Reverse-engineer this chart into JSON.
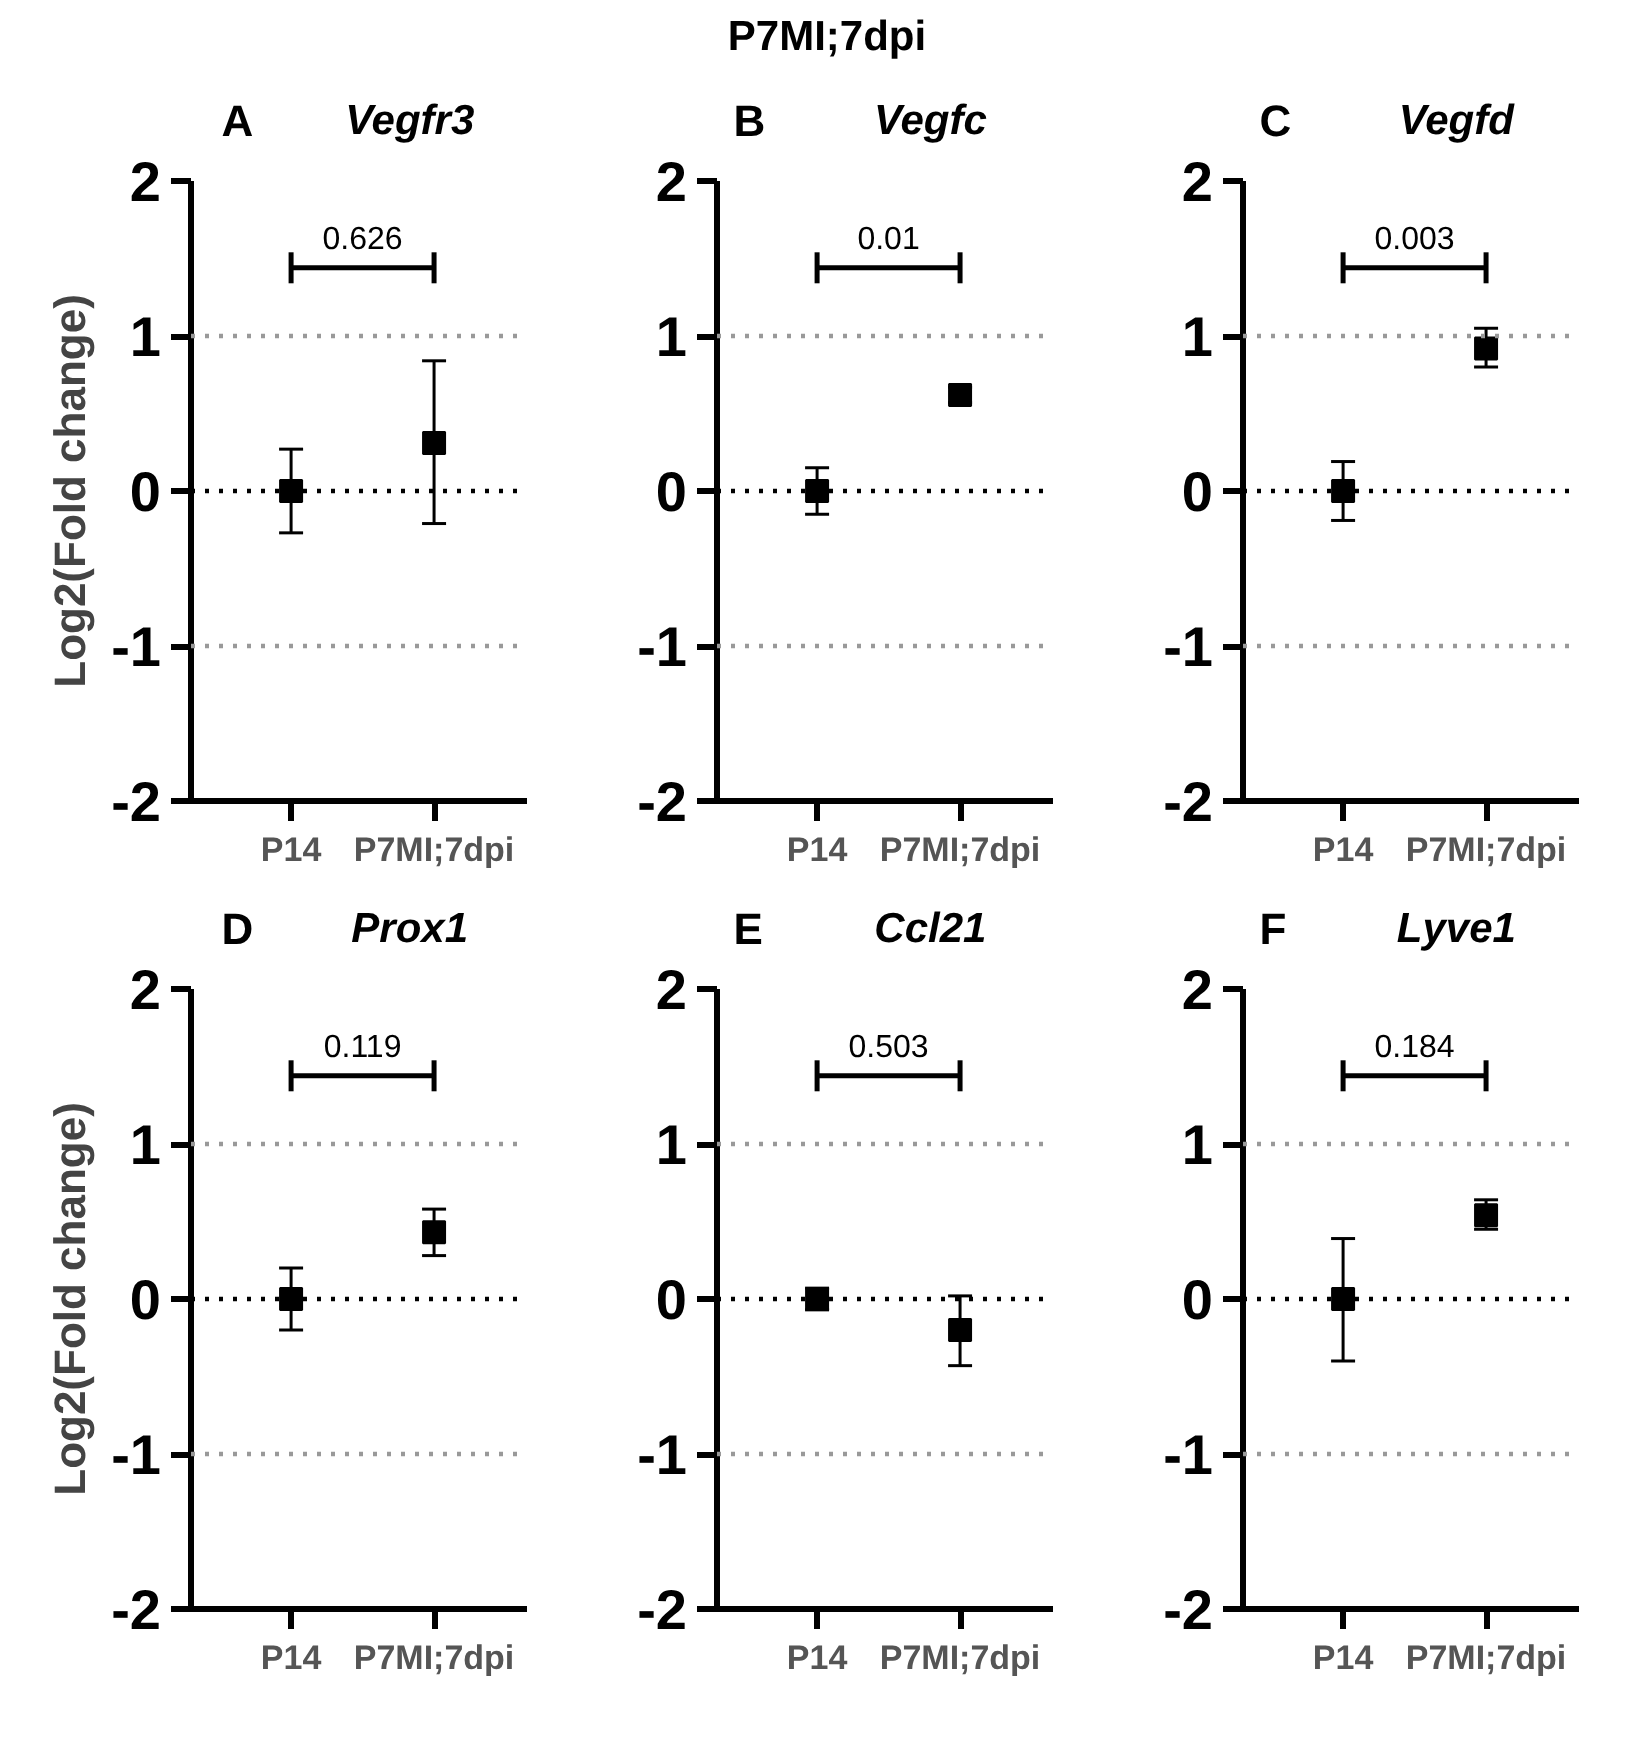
{
  "chart_data": [
    {
      "type": "scatter",
      "title": "Vegfr3",
      "ylabel": "Log2(Fold change)",
      "annotations": [
        "A",
        "0.626",
        "P7MI;7dpi"
      ],
      "categories": [
        "P14",
        "P7MI;7dpi"
      ],
      "marker": "square",
      "grid": false,
      "ylim": [
        -2,
        2
      ],
      "yticks": [
        -2,
        -1,
        0,
        1,
        2
      ],
      "series": [
        {
          "color": "#000000",
          "values": [
            0,
            0.31
          ],
          "errors": [
            0.27,
            [
              -0.21,
              0.84
            ]
          ]
        }
      ],
      "ref_lines": [
        {
          "axis": "y",
          "value": 1,
          "color": "#999999",
          "line_style": "dotted"
        },
        {
          "axis": "y",
          "value": 0,
          "color": "#000000",
          "line_style": "dotted"
        },
        {
          "axis": "y",
          "value": -1,
          "color": "#999999",
          "line_style": "dotted"
        }
      ]
    },
    {
      "type": "scatter",
      "title": "Vegfc",
      "annotations": [
        "B",
        "0.01"
      ],
      "categories": [
        "P14",
        "P7MI;7dpi"
      ],
      "marker": "square",
      "grid": false,
      "ylim": [
        -2,
        2
      ],
      "yticks": [
        -2,
        -1,
        0,
        1,
        2
      ],
      "series": [
        {
          "color": "#000000",
          "values": [
            0,
            0.62
          ],
          "errors": [
            0.15,
            0.05
          ]
        }
      ],
      "ref_lines": [
        {
          "axis": "y",
          "value": 1,
          "color": "#999999",
          "line_style": "dotted"
        },
        {
          "axis": "y",
          "value": 0,
          "color": "#000000",
          "line_style": "dotted"
        },
        {
          "axis": "y",
          "value": -1,
          "color": "#999999",
          "line_style": "dotted"
        }
      ]
    },
    {
      "type": "scatter",
      "title": "Vegfd",
      "annotations": [
        "C",
        "0.003"
      ],
      "categories": [
        "P14",
        "P7MI;7dpi"
      ],
      "marker": "square",
      "grid": false,
      "ylim": [
        -2,
        2
      ],
      "yticks": [
        -2,
        -1,
        0,
        1,
        2
      ],
      "series": [
        {
          "color": "#000000",
          "values": [
            0,
            0.92
          ],
          "errors": [
            0.19,
            [
              0.8,
              1.05
            ]
          ]
        }
      ],
      "ref_lines": [
        {
          "axis": "y",
          "value": 1,
          "color": "#999999",
          "line_style": "dotted"
        },
        {
          "axis": "y",
          "value": 0,
          "color": "#000000",
          "line_style": "dotted"
        },
        {
          "axis": "y",
          "value": -1,
          "color": "#999999",
          "line_style": "dotted"
        }
      ]
    },
    {
      "type": "scatter",
      "title": "Prox1",
      "ylabel": "Log2(Fold change)",
      "annotations": [
        "D",
        "0.119"
      ],
      "categories": [
        "P14",
        "P7MI;7dpi"
      ],
      "marker": "square",
      "grid": false,
      "ylim": [
        -2,
        2
      ],
      "yticks": [
        -2,
        -1,
        0,
        1,
        2
      ],
      "series": [
        {
          "color": "#000000",
          "values": [
            0,
            0.43
          ],
          "errors": [
            0.2,
            [
              0.28,
              0.58
            ]
          ]
        }
      ],
      "ref_lines": [
        {
          "axis": "y",
          "value": 1,
          "color": "#999999",
          "line_style": "dotted"
        },
        {
          "axis": "y",
          "value": 0,
          "color": "#000000",
          "line_style": "dotted"
        },
        {
          "axis": "y",
          "value": -1,
          "color": "#999999",
          "line_style": "dotted"
        }
      ]
    },
    {
      "type": "scatter",
      "title": "Ccl21",
      "annotations": [
        "E",
        "0.503"
      ],
      "categories": [
        "P14",
        "P7MI;7dpi"
      ],
      "marker": "square",
      "grid": false,
      "ylim": [
        -2,
        2
      ],
      "yticks": [
        -2,
        -1,
        0,
        1,
        2
      ],
      "series": [
        {
          "color": "#000000",
          "values": [
            0,
            -0.2
          ],
          "errors": [
            0.07,
            [
              -0.43,
              0.02
            ]
          ]
        }
      ],
      "ref_lines": [
        {
          "axis": "y",
          "value": 1,
          "color": "#999999",
          "line_style": "dotted"
        },
        {
          "axis": "y",
          "value": 0,
          "color": "#000000",
          "line_style": "dotted"
        },
        {
          "axis": "y",
          "value": -1,
          "color": "#999999",
          "line_style": "dotted"
        }
      ]
    },
    {
      "type": "scatter",
      "title": "Lyve1",
      "annotations": [
        "F",
        "0.184"
      ],
      "categories": [
        "P14",
        "P7MI;7dpi"
      ],
      "marker": "square",
      "grid": false,
      "ylim": [
        -2,
        2
      ],
      "yticks": [
        -2,
        -1,
        0,
        1,
        2
      ],
      "series": [
        {
          "color": "#000000",
          "values": [
            0,
            0.54
          ],
          "errors": [
            [
              -0.4,
              0.39
            ],
            [
              0.45,
              0.64
            ]
          ]
        }
      ],
      "ref_lines": [
        {
          "axis": "y",
          "value": 1,
          "color": "#999999",
          "line_style": "dotted"
        },
        {
          "axis": "y",
          "value": 0,
          "color": "#000000",
          "line_style": "dotted"
        },
        {
          "axis": "y",
          "value": -1,
          "color": "#999999",
          "line_style": "dotted"
        }
      ]
    }
  ]
}
